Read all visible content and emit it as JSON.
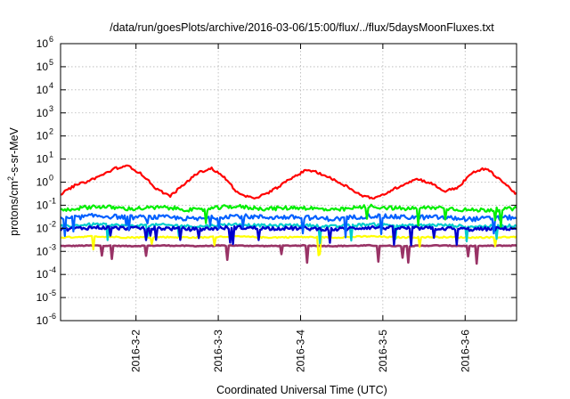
{
  "chart_data": {
    "type": "line",
    "title": "/data/run/goesPlots/archive/2016-03-06/15:00/flux/../flux/5daysMoonFluxes.txt",
    "xlabel": "Coordinated Universal Time (UTC)",
    "ylabel": "protons/cm²-s-sr-MeV",
    "ylabel_parts": {
      "before": "protons/cm",
      "sup": "2",
      "after": "-s-sr-MeV"
    },
    "yscale": "log",
    "ylim": [
      1e-06,
      1000000.0
    ],
    "y_ticks": [
      {
        "value": 1e-06,
        "base": "10",
        "exp": "-6"
      },
      {
        "value": 1e-05,
        "base": "10",
        "exp": "-5"
      },
      {
        "value": 0.0001,
        "base": "10",
        "exp": "-4"
      },
      {
        "value": 0.001,
        "base": "10",
        "exp": "-3"
      },
      {
        "value": 0.01,
        "base": "10",
        "exp": "-2"
      },
      {
        "value": 0.1,
        "base": "10",
        "exp": "-1"
      },
      {
        "value": 1.0,
        "base": "10",
        "exp": "0"
      },
      {
        "value": 10.0,
        "base": "10",
        "exp": "1"
      },
      {
        "value": 100.0,
        "base": "10",
        "exp": "2"
      },
      {
        "value": 1000.0,
        "base": "10",
        "exp": "3"
      },
      {
        "value": 10000.0,
        "base": "10",
        "exp": "4"
      },
      {
        "value": 100000.0,
        "base": "10",
        "exp": "5"
      },
      {
        "value": 1000000.0,
        "base": "10",
        "exp": "6"
      }
    ],
    "xlim": [
      "2016-03-01 02:00",
      "2016-03-06 15:00"
    ],
    "x_ticks": [
      "2016-3-2",
      "2016-3-3",
      "2016-3-4",
      "2016-3-5",
      "2016-3-6"
    ],
    "grid": true,
    "series": [
      {
        "color": "#ff0000",
        "x": [
          "2016-03-01 02:00",
          "2016-03-01 06:00",
          "2016-03-01 10:00",
          "2016-03-01 14:00",
          "2016-03-01 18:00",
          "2016-03-01 22:00",
          "2016-03-02 02:00",
          "2016-03-02 06:00",
          "2016-03-02 10:00",
          "2016-03-02 14:00",
          "2016-03-02 18:00",
          "2016-03-02 22:00",
          "2016-03-03 02:00",
          "2016-03-03 06:00",
          "2016-03-03 10:00",
          "2016-03-03 14:00",
          "2016-03-03 18:00",
          "2016-03-03 22:00",
          "2016-03-04 02:00",
          "2016-03-04 06:00",
          "2016-03-04 10:00",
          "2016-03-04 14:00",
          "2016-03-04 18:00",
          "2016-03-04 22:00",
          "2016-03-05 02:00",
          "2016-03-05 06:00",
          "2016-03-05 10:00",
          "2016-03-05 14:00",
          "2016-03-05 18:00",
          "2016-03-05 22:00",
          "2016-03-06 02:00",
          "2016-03-06 06:00",
          "2016-03-06 10:00",
          "2016-03-06 15:00"
        ],
        "values": [
          0.3,
          0.7,
          1.1,
          2,
          4,
          5,
          2,
          0.5,
          0.25,
          0.8,
          2.5,
          4,
          1.5,
          0.3,
          0.2,
          0.3,
          0.7,
          1.7,
          3.5,
          2.3,
          1.2,
          0.6,
          0.25,
          0.2,
          0.4,
          0.8,
          1.4,
          0.9,
          0.4,
          0.6,
          2.5,
          4,
          1.4,
          0.3
        ]
      },
      {
        "color": "#00ee00",
        "x": [
          "2016-03-01 02:00",
          "2016-03-01 12:00",
          "2016-03-01 22:00",
          "2016-03-02 08:00",
          "2016-03-02 18:00",
          "2016-03-03 04:00",
          "2016-03-03 14:00",
          "2016-03-04 00:00",
          "2016-03-04 10:00",
          "2016-03-04 20:00",
          "2016-03-05 06:00",
          "2016-03-05 16:00",
          "2016-03-06 02:00",
          "2016-03-06 15:00"
        ],
        "values": [
          0.06,
          0.09,
          0.07,
          0.08,
          0.06,
          0.09,
          0.07,
          0.08,
          0.06,
          0.09,
          0.07,
          0.08,
          0.06,
          0.07
        ]
      },
      {
        "color": "#0060ff",
        "x": [
          "2016-03-01 02:00",
          "2016-03-01 12:00",
          "2016-03-01 22:00",
          "2016-03-02 08:00",
          "2016-03-02 18:00",
          "2016-03-03 04:00",
          "2016-03-03 14:00",
          "2016-03-04 00:00",
          "2016-03-04 10:00",
          "2016-03-04 20:00",
          "2016-03-05 06:00",
          "2016-03-05 16:00",
          "2016-03-06 02:00",
          "2016-03-06 15:00"
        ],
        "values": [
          0.025,
          0.035,
          0.03,
          0.03,
          0.025,
          0.035,
          0.03,
          0.03,
          0.025,
          0.035,
          0.03,
          0.03,
          0.025,
          0.03
        ]
      },
      {
        "color": "#00cccc",
        "x": [
          "2016-03-01 02:00",
          "2016-03-01 12:00",
          "2016-03-01 22:00",
          "2016-03-02 08:00",
          "2016-03-02 18:00",
          "2016-03-03 04:00",
          "2016-03-03 14:00",
          "2016-03-04 00:00",
          "2016-03-04 10:00",
          "2016-03-04 20:00",
          "2016-03-05 06:00",
          "2016-03-05 16:00",
          "2016-03-06 02:00",
          "2016-03-06 15:00"
        ],
        "values": [
          0.012,
          0.015,
          0.013,
          0.014,
          0.012,
          0.015,
          0.013,
          0.014,
          0.012,
          0.015,
          0.013,
          0.014,
          0.012,
          0.013
        ]
      },
      {
        "color": "#0000cc",
        "x": [
          "2016-03-01 02:00",
          "2016-03-01 12:00",
          "2016-03-01 22:00",
          "2016-03-02 08:00",
          "2016-03-02 18:00",
          "2016-03-03 04:00",
          "2016-03-03 14:00",
          "2016-03-04 00:00",
          "2016-03-04 10:00",
          "2016-03-04 20:00",
          "2016-03-05 06:00",
          "2016-03-05 16:00",
          "2016-03-06 02:00",
          "2016-03-06 15:00"
        ],
        "values": [
          0.009,
          0.011,
          0.01,
          0.01,
          0.009,
          0.011,
          0.01,
          0.01,
          0.009,
          0.011,
          0.01,
          0.01,
          0.009,
          0.01
        ]
      },
      {
        "color": "#ffff00",
        "x": [
          "2016-03-01 02:00",
          "2016-03-01 12:00",
          "2016-03-01 22:00",
          "2016-03-02 08:00",
          "2016-03-02 18:00",
          "2016-03-03 04:00",
          "2016-03-03 14:00",
          "2016-03-04 00:00",
          "2016-03-04 10:00",
          "2016-03-04 20:00",
          "2016-03-05 06:00",
          "2016-03-05 16:00",
          "2016-03-06 02:00",
          "2016-03-06 15:00"
        ],
        "values": [
          0.004,
          0.0045,
          0.004,
          0.0042,
          0.004,
          0.0045,
          0.004,
          0.0042,
          0.004,
          0.0045,
          0.004,
          0.0042,
          0.004,
          0.0042
        ]
      },
      {
        "color": "#993366",
        "x": [
          "2016-03-01 02:00",
          "2016-03-01 12:00",
          "2016-03-01 22:00",
          "2016-03-02 08:00",
          "2016-03-02 18:00",
          "2016-03-03 04:00",
          "2016-03-03 14:00",
          "2016-03-04 00:00",
          "2016-03-04 10:00",
          "2016-03-04 20:00",
          "2016-03-05 06:00",
          "2016-03-05 16:00",
          "2016-03-06 02:00",
          "2016-03-06 15:00"
        ],
        "values": [
          0.0017,
          0.0018,
          0.0017,
          0.0018,
          0.0017,
          0.0018,
          0.0017,
          0.0018,
          0.0017,
          0.0018,
          0.0017,
          0.0018,
          0.0017,
          0.0018
        ]
      }
    ]
  }
}
